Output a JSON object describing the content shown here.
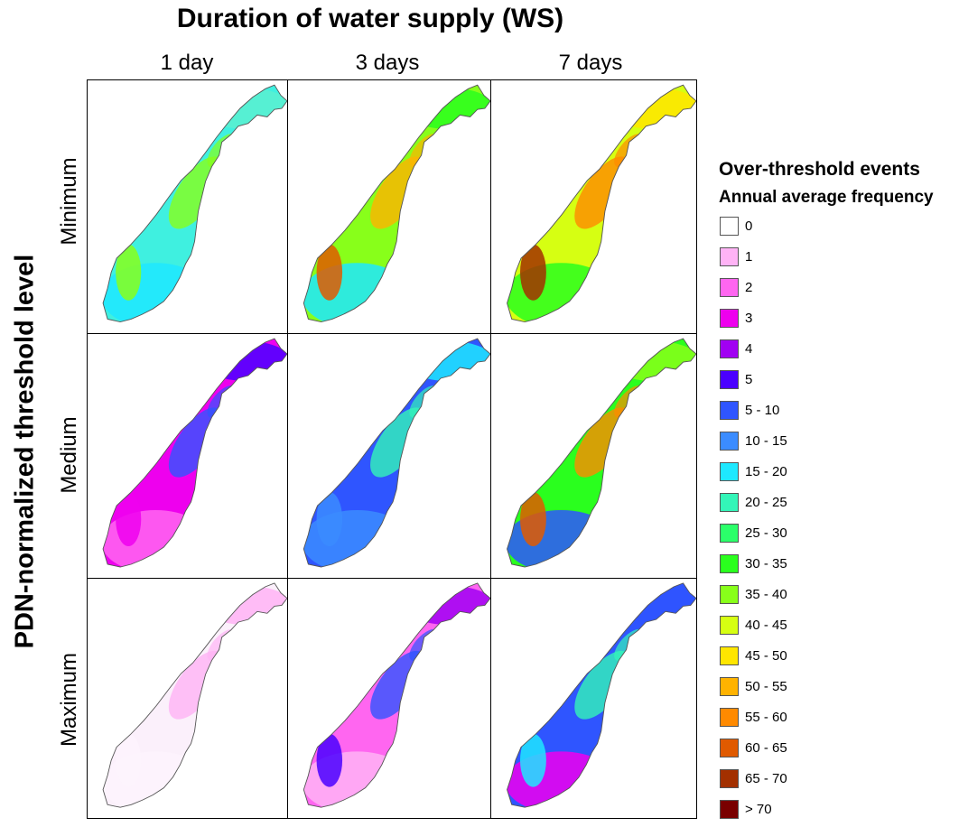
{
  "title": "Duration of water supply (WS)",
  "row_axis_title": "PDN-normalized threshold level",
  "columns": [
    "1 day",
    "3 days",
    "7 days"
  ],
  "rows": [
    "Minimum",
    "Medium",
    "Maximum"
  ],
  "legend": {
    "title": "Over-threshold events",
    "subtitle": "Annual average frequency",
    "items": [
      {
        "label": "0",
        "color": "#ffffff"
      },
      {
        "label": "1",
        "color": "#ffb3f5"
      },
      {
        "label": "2",
        "color": "#ff66f0"
      },
      {
        "label": "3",
        "color": "#ee00ee"
      },
      {
        "label": "4",
        "color": "#a100f2"
      },
      {
        "label": "5",
        "color": "#4a00ff"
      },
      {
        "label": "5 - 10",
        "color": "#2f55ff"
      },
      {
        "label": "10 - 15",
        "color": "#3b8cff"
      },
      {
        "label": "15 - 20",
        "color": "#1ee8ff"
      },
      {
        "label": "20 - 25",
        "color": "#33f5b8"
      },
      {
        "label": "25 - 30",
        "color": "#2bff6a"
      },
      {
        "label": "30 - 35",
        "color": "#2aff1e"
      },
      {
        "label": "35 - 40",
        "color": "#88ff1a"
      },
      {
        "label": "40 - 45",
        "color": "#d6ff12"
      },
      {
        "label": "45 - 50",
        "color": "#ffe600"
      },
      {
        "label": "50 - 55",
        "color": "#ffb300"
      },
      {
        "label": "55 - 60",
        "color": "#ff8a00"
      },
      {
        "label": "60 - 65",
        "color": "#e05a00"
      },
      {
        "label": "65 - 70",
        "color": "#a33000"
      },
      {
        "label": "> 70",
        "color": "#7a0000"
      }
    ]
  },
  "maps": [
    {
      "row": "Minimum",
      "column": "1 day",
      "dominant_color": "#3ff0e0",
      "south_color": "#1ee8ff",
      "north_color": "#5af0d0",
      "accent_color": "#88ff1a",
      "west_color": "#88ff1a"
    },
    {
      "row": "Minimum",
      "column": "3 days",
      "dominant_color": "#88ff1a",
      "south_color": "#1ee8ff",
      "north_color": "#2aff1e",
      "accent_color": "#ffb300",
      "west_color": "#e05a00"
    },
    {
      "row": "Minimum",
      "column": "7 days",
      "dominant_color": "#d6ff12",
      "south_color": "#2aff1e",
      "north_color": "#ffe600",
      "accent_color": "#ff8a00",
      "west_color": "#a33000"
    },
    {
      "row": "Medium",
      "column": "1 day",
      "dominant_color": "#ee00ee",
      "south_color": "#ff66f0",
      "north_color": "#4a00ff",
      "accent_color": "#2f55ff",
      "west_color": "#ee00ee"
    },
    {
      "row": "Medium",
      "column": "3 days",
      "dominant_color": "#2f55ff",
      "south_color": "#3b8cff",
      "north_color": "#1ee8ff",
      "accent_color": "#33f5b8",
      "west_color": "#3b8cff"
    },
    {
      "row": "Medium",
      "column": "7 days",
      "dominant_color": "#2aff1e",
      "south_color": "#2f55ff",
      "north_color": "#88ff1a",
      "accent_color": "#ff8a00",
      "west_color": "#e05a00"
    },
    {
      "row": "Maximum",
      "column": "1 day",
      "dominant_color": "#fbf0fb",
      "south_color": "#fdf3fd",
      "north_color": "#ffb3f5",
      "accent_color": "#ffb3f5",
      "west_color": "#fdf3fd"
    },
    {
      "row": "Maximum",
      "column": "3 days",
      "dominant_color": "#ff66f0",
      "south_color": "#ffb3f5",
      "north_color": "#a100f2",
      "accent_color": "#2f55ff",
      "west_color": "#4a00ff"
    },
    {
      "row": "Maximum",
      "column": "7 days",
      "dominant_color": "#2f55ff",
      "south_color": "#ee00ee",
      "north_color": "#2f55ff",
      "accent_color": "#33f5b8",
      "west_color": "#1ee8ff"
    }
  ]
}
